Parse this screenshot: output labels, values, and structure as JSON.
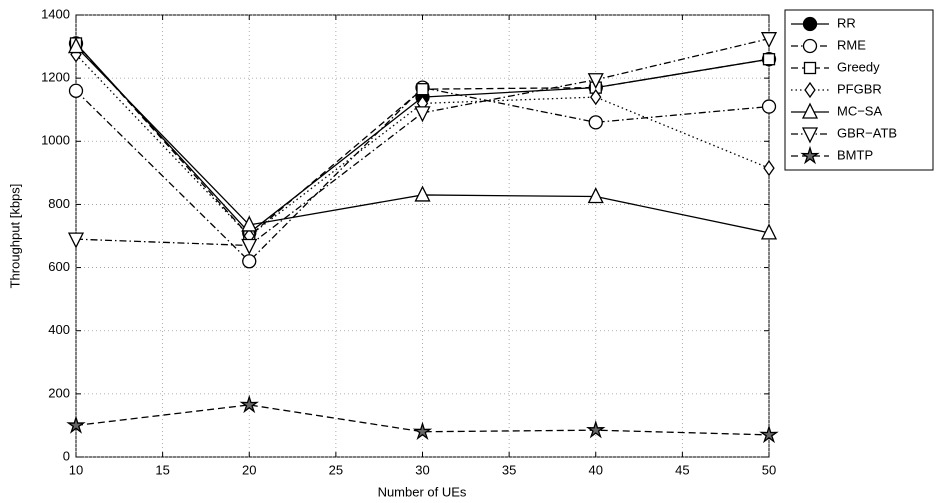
{
  "chart_data": {
    "type": "line",
    "xlabel": "Number of UEs",
    "ylabel": "Throughput [kbps]",
    "x": [
      10,
      20,
      30,
      40,
      50
    ],
    "series": [
      {
        "name": "RR",
        "color": "#000000",
        "marker": "filled-circle",
        "linestyle": "solid",
        "values": [
          1310,
          710,
          1140,
          1170,
          1260
        ]
      },
      {
        "name": "RME",
        "color": "#000000",
        "marker": "circle",
        "linestyle": "dashdot",
        "values": [
          1160,
          620,
          1170,
          1060,
          1110
        ]
      },
      {
        "name": "Greedy",
        "color": "#000000",
        "marker": "square",
        "linestyle": "dashed",
        "values": [
          1310,
          700,
          1165,
          1170,
          1260
        ]
      },
      {
        "name": "PFGBR",
        "color": "#000000",
        "marker": "diamond",
        "linestyle": "dotted",
        "values": [
          1275,
          700,
          1120,
          1140,
          915
        ]
      },
      {
        "name": "MC−SA",
        "color": "#000000",
        "marker": "triangle-up",
        "linestyle": "solid",
        "values": [
          1300,
          735,
          830,
          825,
          710
        ]
      },
      {
        "name": "GBR−ATB",
        "color": "#000000",
        "marker": "triangle-down",
        "linestyle": "dashdot",
        "values": [
          690,
          670,
          1090,
          1195,
          1325
        ]
      },
      {
        "name": "BMTP",
        "color": "#000000",
        "marker": "star",
        "linestyle": "dashed",
        "values": [
          100,
          165,
          80,
          85,
          70
        ]
      }
    ],
    "xlim": [
      10,
      50
    ],
    "xticks": [
      10,
      15,
      20,
      25,
      30,
      35,
      40,
      45,
      50
    ],
    "ylim": [
      0,
      1400
    ],
    "yticks": [
      0,
      200,
      400,
      600,
      800,
      1000,
      1200,
      1400
    ],
    "grid": true,
    "legend": "outside-top-right"
  }
}
